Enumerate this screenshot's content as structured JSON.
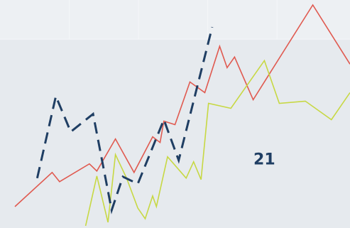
{
  "chart_data": {
    "type": "line",
    "title": "",
    "xlabel": "",
    "ylabel": "",
    "grid": true,
    "legend": "none",
    "xlim": [
      0,
      47
    ],
    "ylim": [
      0,
      32
    ],
    "series": [
      {
        "color": "#e05a50",
        "dash": "solid",
        "x": [
          2,
          7,
          8,
          12,
          13,
          15.5,
          18,
          20.5,
          21.5,
          22,
          23.5,
          25.5,
          27.5,
          29.5,
          30.5,
          31.5,
          34,
          42,
          47
        ],
        "y": [
          3,
          7.8,
          6.5,
          9,
          8,
          12.5,
          7.8,
          12.8,
          12,
          15,
          14.5,
          20.5,
          19,
          25.5,
          22.5,
          24,
          18,
          31.3,
          23
        ]
      },
      {
        "color": "#c7d843",
        "dash": "solid",
        "x": [
          11.5,
          13,
          14.5,
          15.5,
          17,
          18.5,
          19.5,
          20.5,
          21,
          22.5,
          25,
          26,
          27,
          28,
          31,
          35.5,
          37.5,
          41,
          44.5,
          47
        ],
        "y": [
          0.3,
          7.3,
          0.8,
          10.3,
          7,
          2.8,
          1.3,
          4.5,
          3,
          10,
          7,
          9.3,
          6.8,
          17.5,
          16.8,
          23.5,
          17.5,
          17.8,
          15.2,
          19
        ]
      },
      {
        "color": "#1f3e63",
        "dash": "dashed",
        "x": [
          5,
          7.5,
          9.5,
          12.5,
          15,
          16.5,
          18.5,
          22,
          24,
          28.5
        ],
        "y": [
          7,
          18.5,
          13.5,
          16,
          2.5,
          7.2,
          6.2,
          15.2,
          9.5,
          28.2
        ]
      }
    ],
    "annotations": [
      {
        "text": "21",
        "x": 35.5,
        "y": 9.5,
        "color": "#1f3e63"
      }
    ]
  }
}
